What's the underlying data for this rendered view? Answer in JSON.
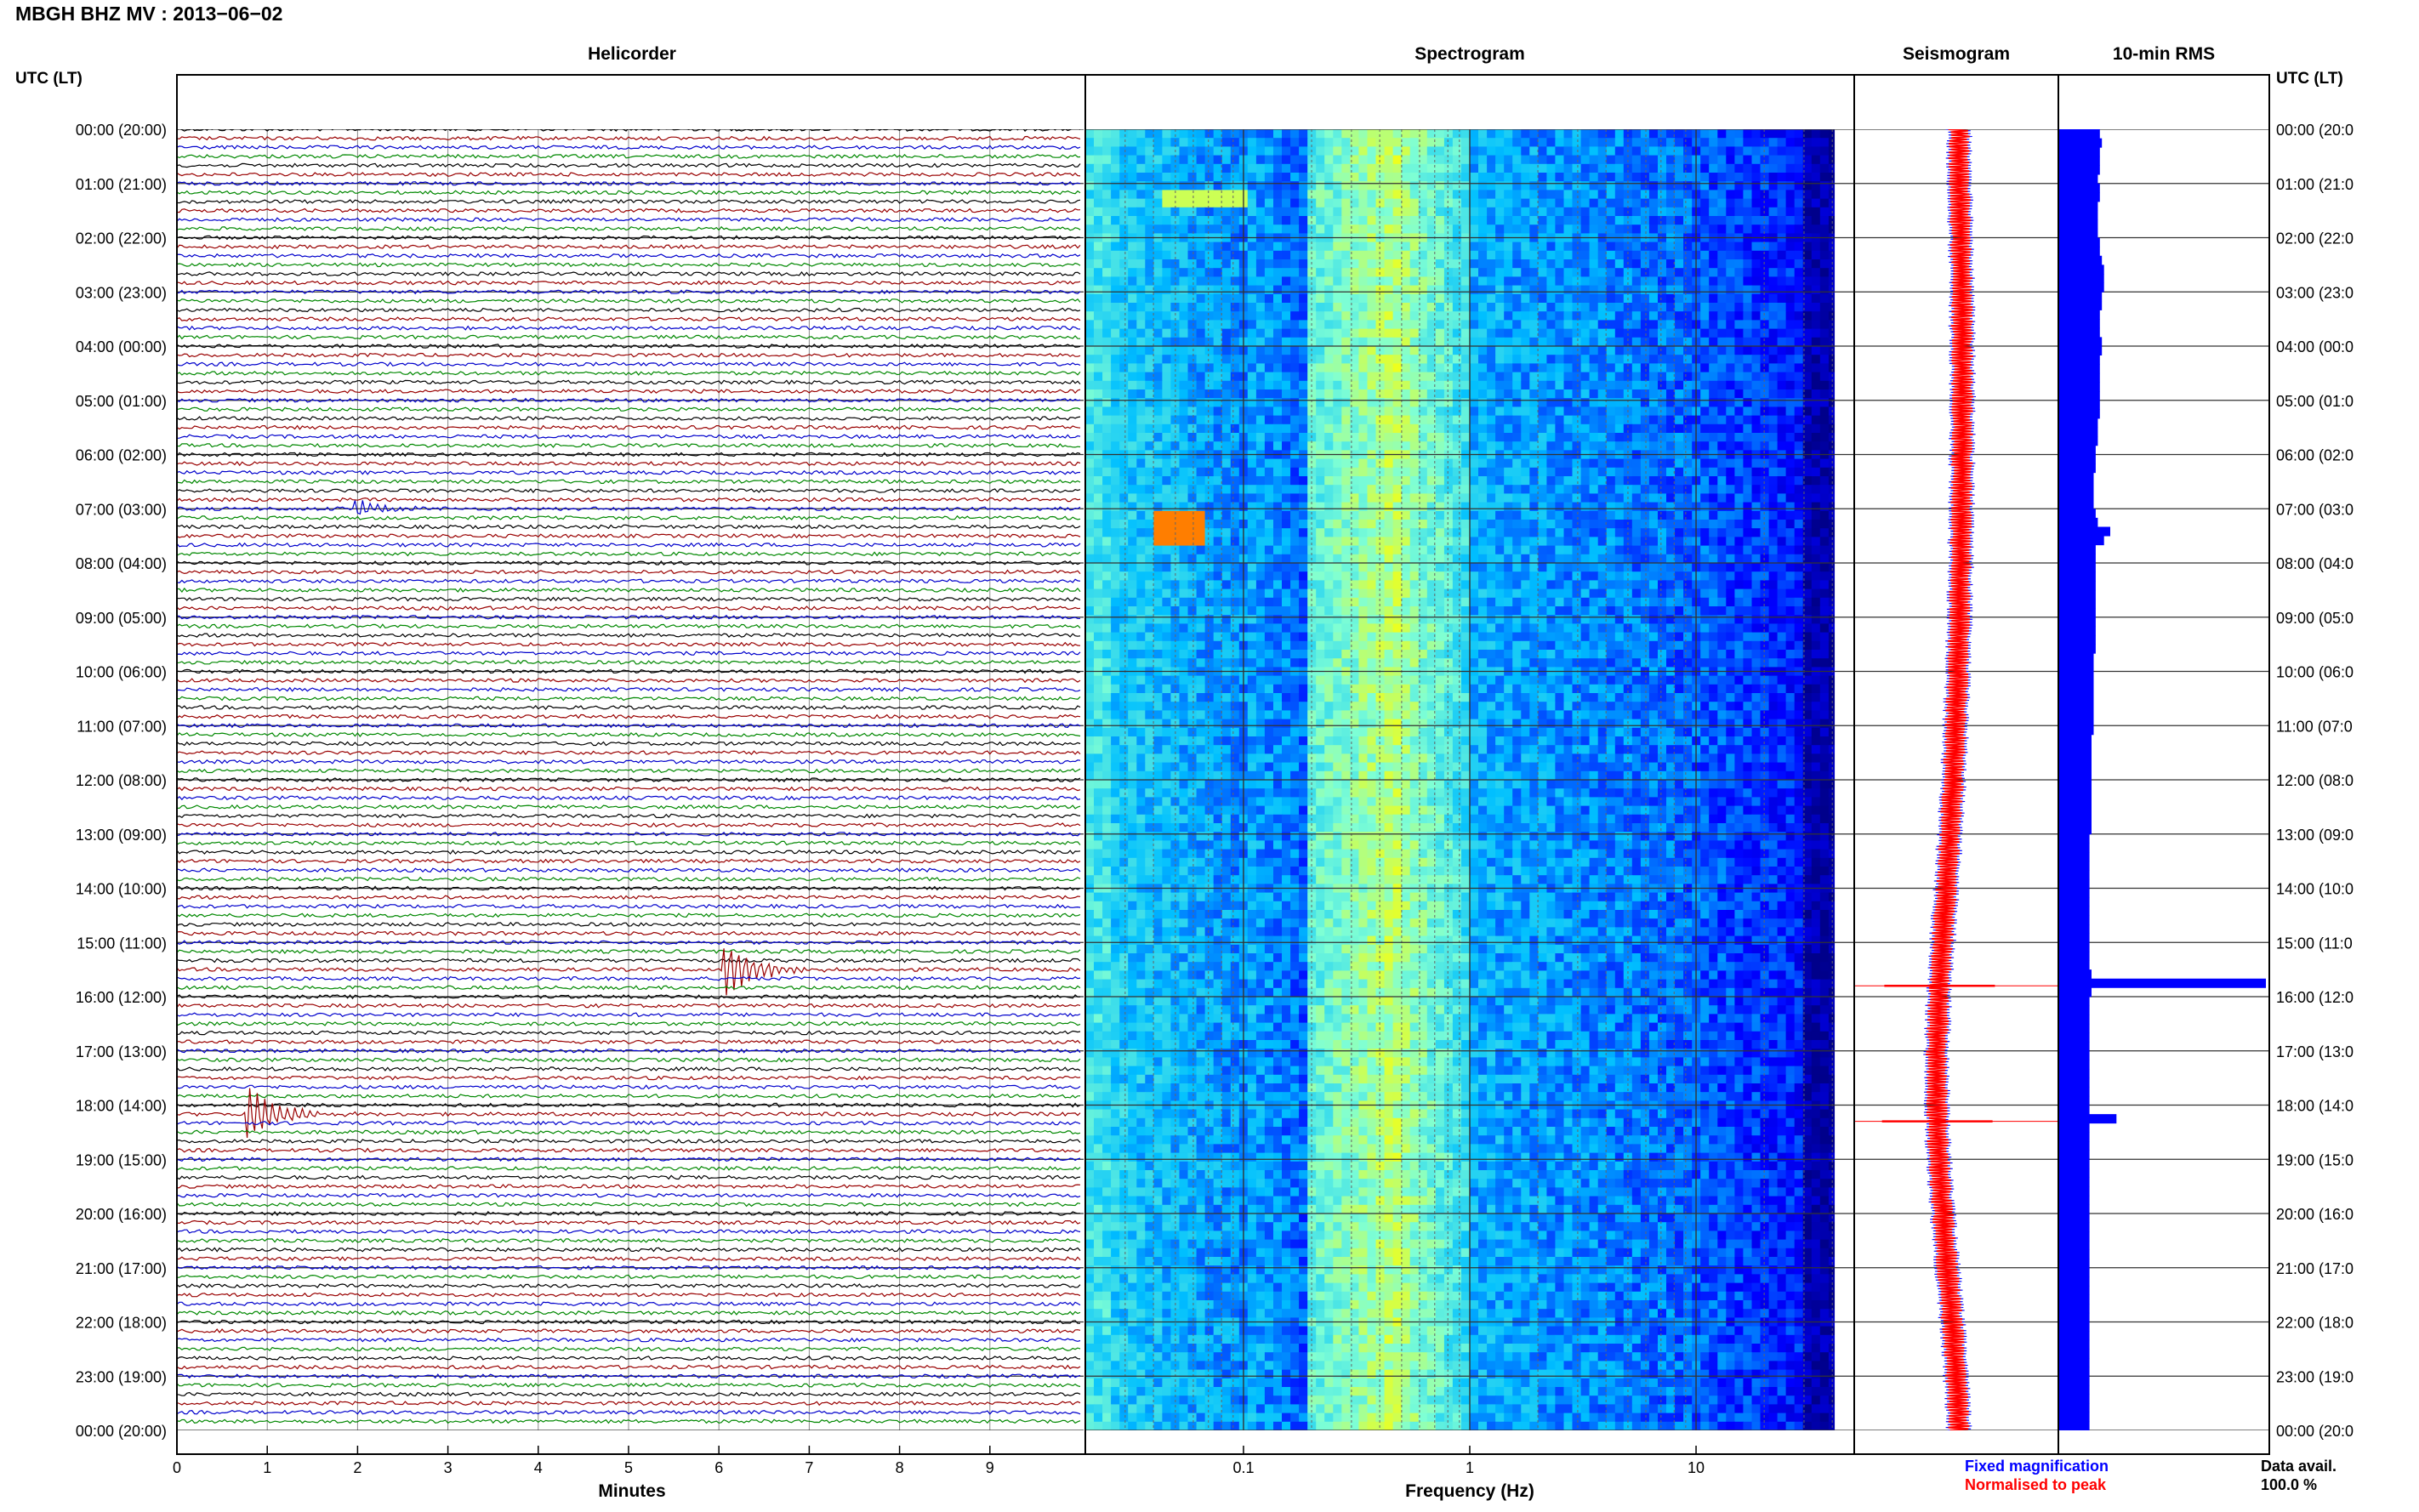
{
  "title": "MBGH BHZ MV : 2013−06−02",
  "left_axis_title": "UTC (LT)",
  "right_axis_title": "UTC (LT)",
  "panels": {
    "helicorder": "Helicorder",
    "spectrogram": "Spectrogram",
    "seismogram": "Seismogram",
    "rms": "10-min RMS"
  },
  "time_labels": [
    "00:00 (20:00)",
    "01:00 (21:00)",
    "02:00 (22:00)",
    "03:00 (23:00)",
    "04:00 (00:00)",
    "05:00 (01:00)",
    "06:00 (02:00)",
    "07:00 (03:00)",
    "08:00 (04:00)",
    "09:00 (05:00)",
    "10:00 (06:00)",
    "11:00 (07:00)",
    "12:00 (08:00)",
    "13:00 (09:00)",
    "14:00 (10:00)",
    "15:00 (11:00)",
    "16:00 (12:00)",
    "17:00 (13:00)",
    "18:00 (14:00)",
    "19:00 (15:00)",
    "20:00 (16:00)",
    "21:00 (17:00)",
    "22:00 (18:00)",
    "23:00 (19:00)",
    "00:00 (20:00)"
  ],
  "right_time_labels": [
    "00:00 (20:0",
    "01:00 (21:0",
    "02:00 (22:0",
    "03:00 (23:0",
    "04:00 (00:0",
    "05:00 (01:0",
    "06:00 (02:0",
    "07:00 (03:0",
    "08:00 (04:0",
    "09:00 (05:0",
    "10:00 (06:0",
    "11:00 (07:0",
    "12:00 (08:0",
    "13:00 (09:0",
    "14:00 (10:0",
    "15:00 (11:0",
    "16:00 (12:0",
    "17:00 (13:0",
    "18:00 (14:0",
    "19:00 (15:0",
    "20:00 (16:0",
    "21:00 (17:0",
    "22:00 (18:0",
    "23:00 (19:0",
    "00:00 (20:0"
  ],
  "x_axes": {
    "minutes_label": "Minutes",
    "minutes_ticks": [
      "0",
      "1",
      "2",
      "3",
      "4",
      "5",
      "6",
      "7",
      "8",
      "9"
    ],
    "frequency_label": "Frequency (Hz)",
    "frequency_ticks": [
      "0.1",
      "1",
      "10"
    ]
  },
  "legend": {
    "fixed": "Fixed magnification",
    "normalised": "Normalised to peak",
    "fixed_color": "#0000ff",
    "normalised_color": "#ff0000"
  },
  "availability": {
    "label": "Data avail.",
    "value": "100.0 %"
  },
  "chart_data": {
    "type": "heatmap",
    "hours": 24,
    "helicorder": {
      "minutes_per_line": 10,
      "xlim": [
        0,
        10
      ],
      "line_colors": [
        "#000000",
        "#990000",
        "#0000cc",
        "#008800"
      ],
      "events": [
        {
          "start_hour": 15.5,
          "minute": 6.1,
          "amplitude": "large"
        },
        {
          "start_hour": 18.17,
          "minute": 0.8,
          "amplitude": "large"
        },
        {
          "start_hour": 7.0,
          "minute": 2.0,
          "amplitude": "small"
        }
      ]
    },
    "spectrogram": {
      "frequency_scale": "log",
      "xlim_hz": [
        0.02,
        50
      ],
      "colormap": [
        "#00008b",
        "#0000ff",
        "#00bfff",
        "#7fffd4",
        "#ffff00",
        "#ff8c00",
        "#ff0000"
      ]
    },
    "seismogram": {
      "spikes_hour": [
        15.8,
        18.3
      ]
    },
    "rms": {
      "interval_minutes": 10,
      "values": [
        0.2,
        0.21,
        0.2,
        0.2,
        0.2,
        0.19,
        0.2,
        0.2,
        0.19,
        0.19,
        0.19,
        0.19,
        0.2,
        0.2,
        0.21,
        0.22,
        0.22,
        0.22,
        0.21,
        0.21,
        0.2,
        0.2,
        0.2,
        0.21,
        0.21,
        0.2,
        0.2,
        0.2,
        0.2,
        0.2,
        0.2,
        0.2,
        0.19,
        0.19,
        0.19,
        0.18,
        0.18,
        0.18,
        0.17,
        0.17,
        0.17,
        0.17,
        0.18,
        0.19,
        0.25,
        0.22,
        0.18,
        0.18,
        0.18,
        0.18,
        0.18,
        0.18,
        0.18,
        0.18,
        0.18,
        0.18,
        0.18,
        0.18,
        0.17,
        0.17,
        0.17,
        0.17,
        0.17,
        0.17,
        0.17,
        0.17,
        0.17,
        0.16,
        0.16,
        0.16,
        0.16,
        0.16,
        0.16,
        0.16,
        0.16,
        0.16,
        0.16,
        0.16,
        0.15,
        0.15,
        0.15,
        0.15,
        0.15,
        0.15,
        0.15,
        0.15,
        0.15,
        0.15,
        0.15,
        0.15,
        0.15,
        0.15,
        0.15,
        0.16,
        1.0,
        0.16,
        0.15,
        0.15,
        0.15,
        0.15,
        0.15,
        0.15,
        0.15,
        0.15,
        0.15,
        0.15,
        0.15,
        0.15,
        0.15,
        0.28,
        0.15,
        0.15,
        0.15,
        0.15,
        0.15,
        0.15,
        0.15,
        0.15,
        0.15,
        0.15,
        0.15,
        0.15,
        0.15,
        0.15,
        0.15,
        0.15,
        0.15,
        0.15,
        0.15,
        0.15,
        0.15,
        0.15,
        0.15,
        0.15,
        0.15,
        0.15,
        0.15,
        0.15,
        0.15,
        0.15,
        0.15,
        0.15,
        0.15,
        0.15
      ]
    }
  }
}
